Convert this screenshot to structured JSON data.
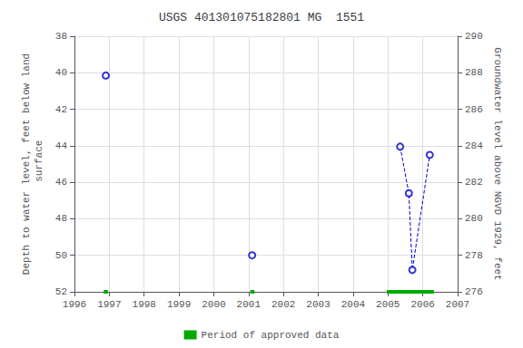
{
  "chart_data": {
    "type": "scatter",
    "title": "USGS 401301075182801 MG  1551",
    "ylabel": "Depth to water level, feet below land\n surface",
    "y2label": "Groundwater level above NGVD 1929, feet",
    "xlim": [
      1996,
      2007
    ],
    "xticks": [
      1996,
      1997,
      1998,
      1999,
      2000,
      2001,
      2002,
      2003,
      2004,
      2005,
      2006,
      2007
    ],
    "ylim": [
      52,
      38
    ],
    "yticks": [
      38,
      40,
      42,
      44,
      46,
      48,
      50,
      52
    ],
    "y2lim": [
      276,
      290
    ],
    "y2ticks": [
      276,
      278,
      280,
      282,
      284,
      286,
      288,
      290
    ],
    "grid": true,
    "legend": "bottom",
    "series": [
      {
        "type": "line",
        "line_style": "dashed",
        "color": "#0000cc",
        "x": [
          2005.35,
          2005.6,
          2005.7,
          2006.2
        ],
        "values": [
          44.05,
          46.6,
          50.8,
          44.5
        ]
      },
      {
        "type": "scatter",
        "marker": "open_circle",
        "color": "#0000cc",
        "x": [
          1996.9,
          2001.1,
          2005.35,
          2005.6,
          2005.7,
          2006.2
        ],
        "values": [
          40.15,
          50.0,
          44.05,
          46.6,
          50.8,
          44.5
        ]
      }
    ],
    "approved_periods": {
      "name": "Period of approved data",
      "color": "#00aa00",
      "periods": [
        [
          1996.84,
          1996.96
        ],
        [
          2001.05,
          2001.17
        ],
        [
          2004.97,
          2006.32
        ]
      ]
    }
  }
}
